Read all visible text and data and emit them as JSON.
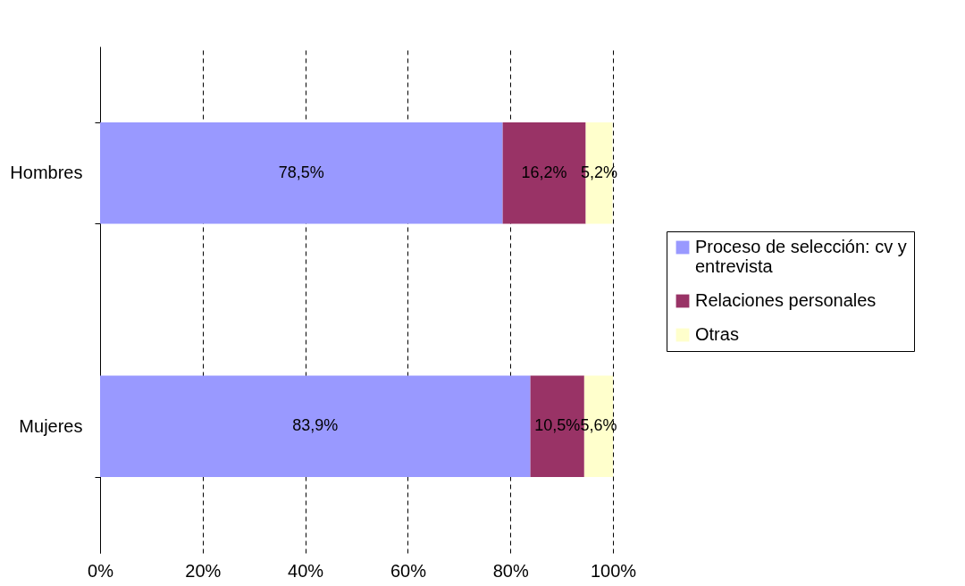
{
  "chart_data": {
    "type": "bar",
    "orientation": "horizontal",
    "stacked": true,
    "categories": [
      "Hombres",
      "Mujeres"
    ],
    "series": [
      {
        "name": "Proceso de selección: cv y entrevista",
        "color": "#9999ff",
        "values": [
          78.5,
          83.9
        ],
        "value_labels": [
          "78,5%",
          "83,9%"
        ]
      },
      {
        "name": "Relaciones personales",
        "color": "#993366",
        "values": [
          16.2,
          10.5
        ],
        "value_labels": [
          "16,2%",
          "10,5%"
        ]
      },
      {
        "name": "Otras",
        "color": "#ffffcc",
        "values": [
          5.2,
          5.6
        ],
        "value_labels": [
          "5,2%",
          "5,6%"
        ]
      }
    ],
    "xlim": [
      0,
      100
    ],
    "xticks": [
      {
        "value": 0,
        "label": "0%"
      },
      {
        "value": 20,
        "label": "20%"
      },
      {
        "value": 40,
        "label": "40%"
      },
      {
        "value": 60,
        "label": "60%"
      },
      {
        "value": 80,
        "label": "80%"
      },
      {
        "value": 100,
        "label": "100%"
      }
    ],
    "grid": "x",
    "legend": "right"
  }
}
